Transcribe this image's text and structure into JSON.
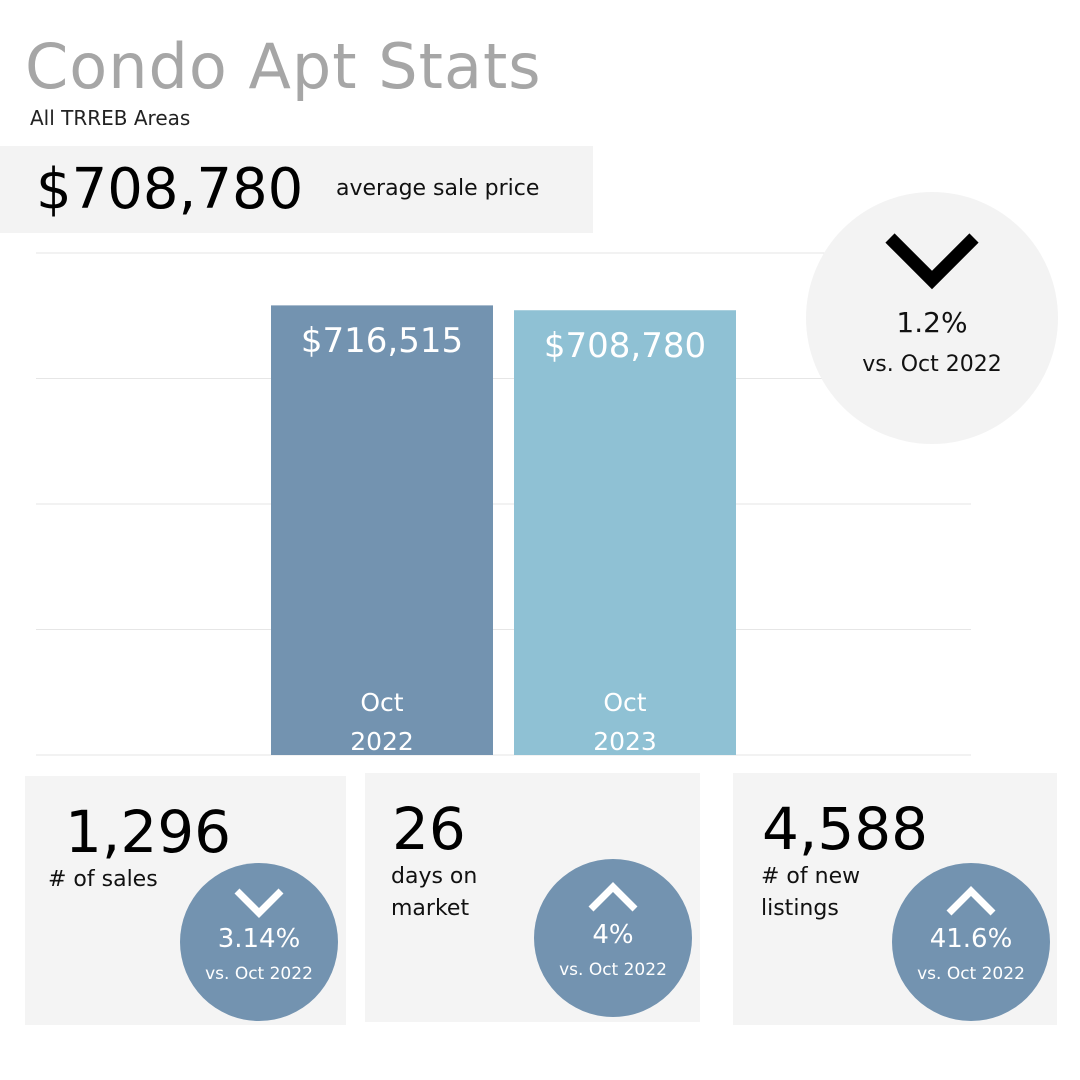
{
  "title": "Condo Apt Stats",
  "subtitle": "All TRREB Areas",
  "headline": {
    "value": "$708,780",
    "label": "average sale price"
  },
  "chart_data": {
    "type": "bar",
    "categories": [
      "Oct 2022",
      "Oct 2023"
    ],
    "values": [
      716515,
      708780
    ],
    "value_labels": [
      "$716,515",
      "$708,780"
    ],
    "colors": [
      "#7393b0",
      "#8fc1d4"
    ],
    "ylim": [
      0,
      800000
    ],
    "yticks": [
      0,
      200000,
      400000,
      600000,
      800000
    ],
    "grid": true
  },
  "change": {
    "direction": "down",
    "value": "1.2%",
    "compare": "vs. Oct 2022"
  },
  "stats": [
    {
      "value": "1,296",
      "label": "# of sales",
      "direction": "down",
      "change": "3.14%",
      "compare": "vs. Oct 2022"
    },
    {
      "value": "26",
      "label": "days on market",
      "direction": "up",
      "change": "4%",
      "compare": "vs. Oct 2022"
    },
    {
      "value": "4,588",
      "label": "# of new listings",
      "direction": "up",
      "change": "41.6%",
      "compare": "vs. Oct 2022"
    }
  ]
}
